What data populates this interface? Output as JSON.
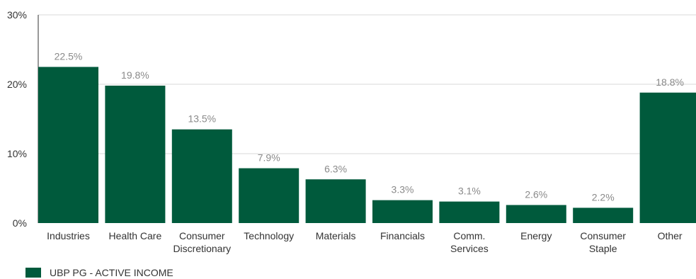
{
  "chart_data": {
    "type": "bar",
    "categories": [
      "Industries",
      "Health Care",
      "Consumer Discretionary",
      "Technology",
      "Materials",
      "Financials",
      "Comm. Services",
      "Energy",
      "Consumer Staple",
      "Other"
    ],
    "category_lines": [
      [
        "Industries"
      ],
      [
        "Health Care"
      ],
      [
        "Consumer",
        "Discretionary"
      ],
      [
        "Technology"
      ],
      [
        "Materials"
      ],
      [
        "Financials"
      ],
      [
        "Comm.",
        "Services"
      ],
      [
        "Energy"
      ],
      [
        "Consumer",
        "Staple"
      ],
      [
        "Other"
      ]
    ],
    "values": [
      22.5,
      19.8,
      13.5,
      7.9,
      6.3,
      3.3,
      3.1,
      2.6,
      2.2,
      18.8
    ],
    "value_labels": [
      "22.5%",
      "19.8%",
      "13.5%",
      "7.9%",
      "6.3%",
      "3.3%",
      "3.1%",
      "2.6%",
      "2.2%",
      "18.8%"
    ],
    "ylim": [
      0,
      30
    ],
    "yticks": [
      0,
      10,
      20,
      30
    ],
    "ytick_labels": [
      "0%",
      "10%",
      "20%",
      "30%"
    ],
    "grid": true,
    "legend_position": "bottom-left",
    "series": [
      {
        "name": "UBP PG - ACTIVE INCOME",
        "color": "#005a3c"
      }
    ]
  },
  "legend": {
    "label": "UBP PG - ACTIVE INCOME"
  },
  "colors": {
    "bar": "#005a3c",
    "grid": "#d9d9d9",
    "axis": "#333333"
  }
}
